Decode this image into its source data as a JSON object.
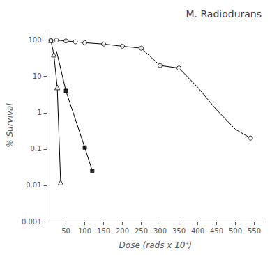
{
  "chart_data": {
    "type": "line",
    "title": "M. Radiodurans",
    "xlabel": "Dose (rads x 10³)",
    "ylabel": "% Survival",
    "log": "y",
    "grid": false,
    "xlim": [
      0,
      575
    ],
    "ylim": [
      0.001,
      200
    ],
    "xticks": [
      50,
      100,
      150,
      200,
      250,
      300,
      350,
      400,
      450,
      500,
      550
    ],
    "yticks": [
      0.001,
      0.01,
      0.1,
      1,
      10,
      100
    ],
    "series": [
      {
        "type": "line",
        "line_style": "solid",
        "color": "#000000",
        "x": [
          10,
          25,
          50,
          75,
          100,
          150,
          200,
          250,
          300,
          350,
          400,
          450,
          500,
          540
        ],
        "values": [
          100,
          100,
          95,
          90,
          85,
          78,
          68,
          60,
          20,
          17,
          5,
          1.2,
          0.35,
          0.2
        ]
      },
      {
        "type": "scatter",
        "marker": "open_circle",
        "color": "#000000",
        "x": [
          10,
          25,
          50,
          75,
          100,
          150,
          200,
          250,
          300,
          350,
          540
        ],
        "values": [
          100,
          100,
          95,
          90,
          85,
          78,
          68,
          60,
          20,
          17,
          0.2
        ]
      },
      {
        "type": "line",
        "line_style": "solid",
        "color": "#000000",
        "x": [
          10,
          18,
          27,
          36
        ],
        "values": [
          100,
          40,
          5,
          0.012
        ]
      },
      {
        "type": "scatter",
        "marker": "open_triangle",
        "color": "#000000",
        "x": [
          10,
          18,
          27,
          36
        ],
        "values": [
          100,
          40,
          5,
          0.012
        ]
      },
      {
        "type": "line",
        "line_style": "solid",
        "color": "#000000",
        "x": [
          25,
          50,
          100,
          120
        ],
        "values": [
          50,
          4.0,
          0.11,
          0.025
        ]
      },
      {
        "type": "scatter",
        "marker": "filled_square",
        "color": "#000000",
        "x": [
          50,
          100,
          120
        ],
        "values": [
          4.0,
          0.11,
          0.025
        ]
      }
    ]
  }
}
